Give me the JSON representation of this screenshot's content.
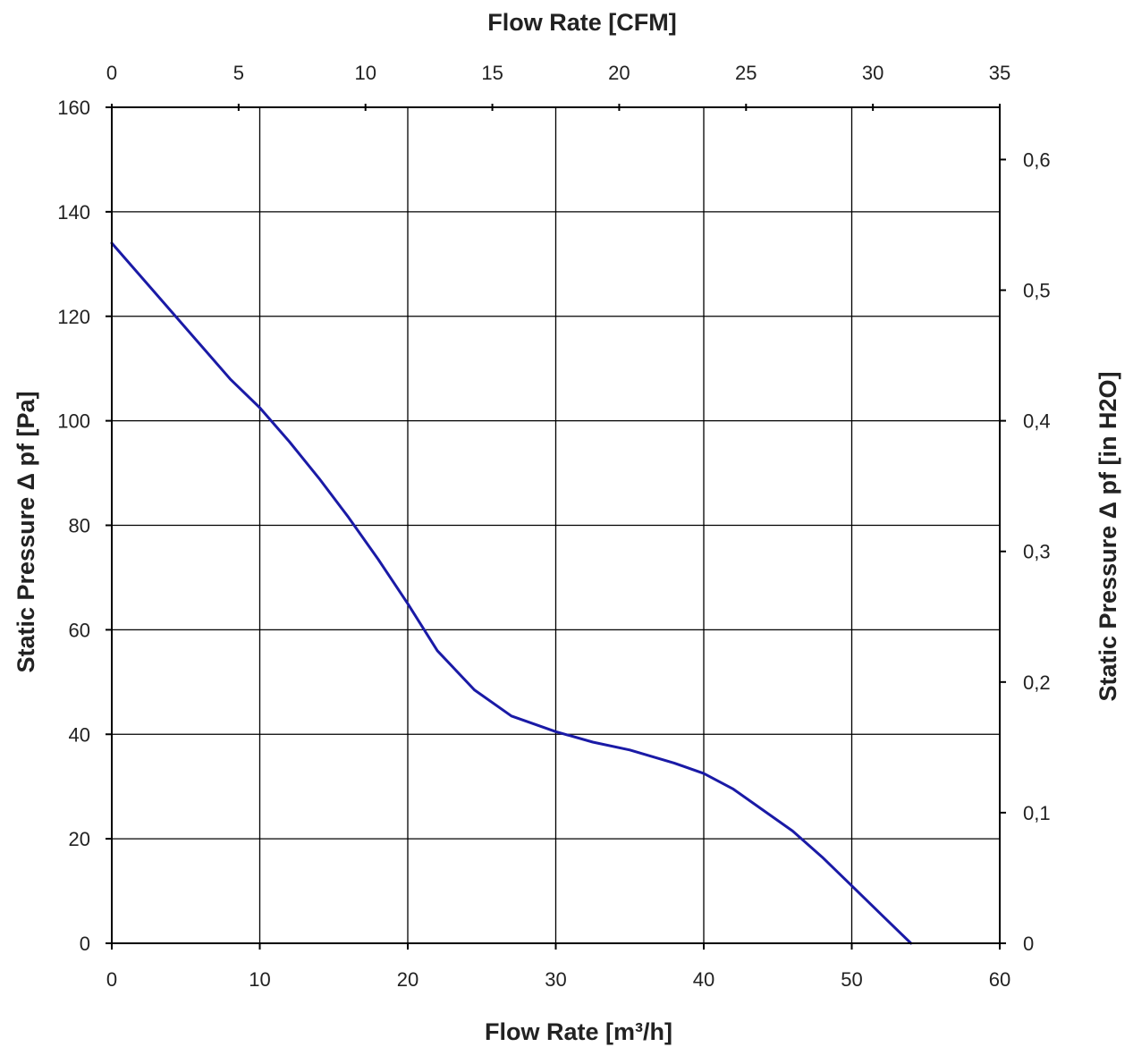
{
  "chart_data": {
    "type": "line",
    "title": "",
    "xlabel": "Flow Rate [m³/h]",
    "x2label": "Flow Rate [CFM]",
    "ylabel": "Static Pressure Δ pf [Pa]",
    "y2label": "Static Pressure Δ pf [in H2O]",
    "xlim": [
      0,
      60
    ],
    "x2lim": [
      0,
      35
    ],
    "ylim": [
      0,
      160
    ],
    "y2lim": [
      0,
      0.64
    ],
    "grid": true,
    "x_ticks": [
      "0",
      "10",
      "20",
      "30",
      "40",
      "50",
      "60"
    ],
    "x2_ticks": [
      "0",
      "5",
      "10",
      "15",
      "20",
      "25",
      "30",
      "35"
    ],
    "y_ticks": [
      "0",
      "20",
      "40",
      "60",
      "80",
      "100",
      "120",
      "140",
      "160"
    ],
    "y2_ticks": [
      "0",
      "0,1",
      "0,2",
      "0,3",
      "0,4",
      "0,5",
      "0,6"
    ],
    "colors": {
      "series": "#1a1aa6",
      "grid": "#000000"
    },
    "series": [
      {
        "x": [
          0,
          2,
          4,
          6,
          8,
          10,
          12,
          14,
          16,
          18,
          20,
          22,
          24.5,
          27,
          30,
          32.5,
          35,
          38,
          40,
          42,
          44,
          46,
          48,
          50,
          52,
          54
        ],
        "y": [
          134,
          127.5,
          121,
          114.5,
          108,
          102.5,
          96,
          89,
          81.5,
          73.5,
          65,
          56,
          48.5,
          43.5,
          40.5,
          38.5,
          37,
          34.5,
          32.5,
          29.5,
          25.5,
          21.5,
          16.5,
          11,
          5.5,
          0
        ]
      }
    ]
  }
}
